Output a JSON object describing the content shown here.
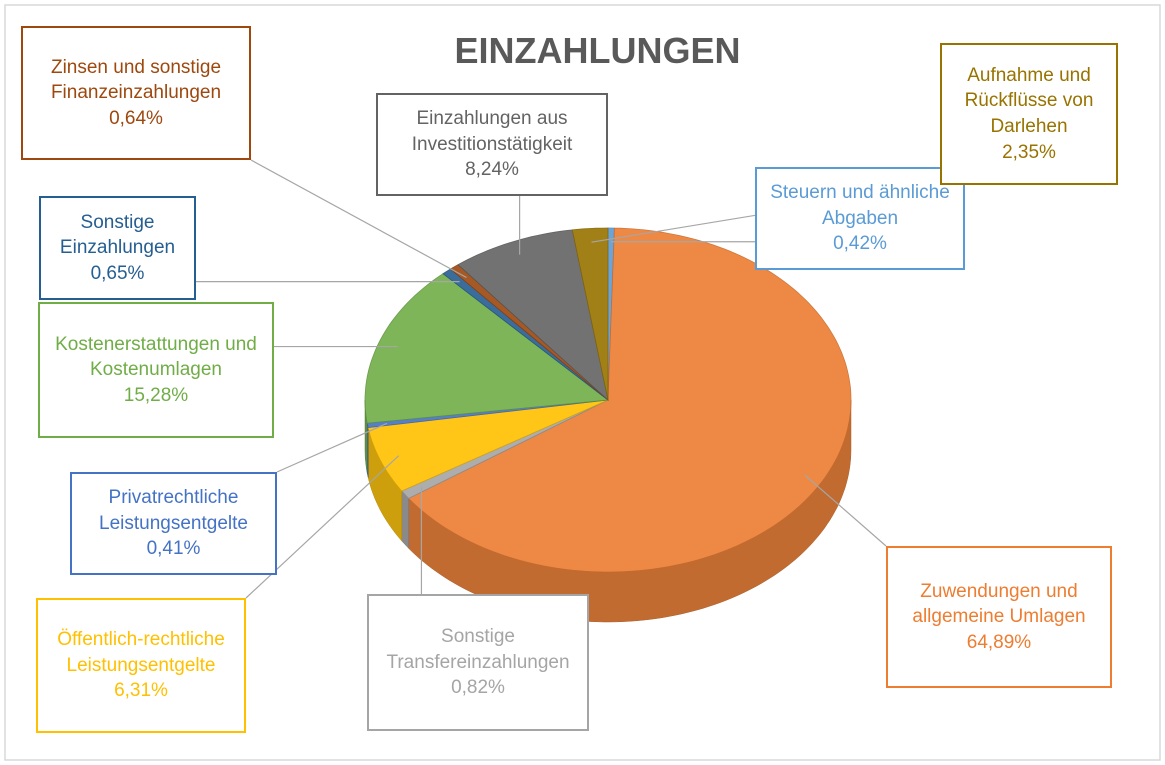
{
  "chart_data": {
    "type": "pie",
    "title": "EINZAHLUNGEN",
    "categories": [
      "Steuern und ähnliche Abgaben",
      "Zuwendungen und allgemeine Umlagen",
      "Sonstige Transfereinzahlungen",
      "Öffentlich-rechtliche Leistungsentgelte",
      "Privatrechtliche Leistungsentgelte",
      "Kostenerstattungen und Kostenumlagen",
      "Sonstige Einzahlungen",
      "Zinsen und sonstige Finanzeinzahlungen",
      "Einzahlungen aus Investitionstätigkeit",
      "Aufnahme und Rückflüsse von Darlehen"
    ],
    "values": [
      0.42,
      64.89,
      0.82,
      6.31,
      0.41,
      15.28,
      0.65,
      0.64,
      8.24,
      2.35
    ],
    "value_labels": [
      "0,42%",
      "64,89%",
      "0,82%",
      "6,31%",
      "0,41%",
      "15,28%",
      "0,65%",
      "0,64%",
      "8,24%",
      "2,35%"
    ],
    "colors": [
      "#5b9bd5",
      "#ed7d31",
      "#a5a5a5",
      "#ffc000",
      "#4472c4",
      "#70ad47",
      "#255e91",
      "#9e480e",
      "#636363",
      "#997300"
    ]
  }
}
